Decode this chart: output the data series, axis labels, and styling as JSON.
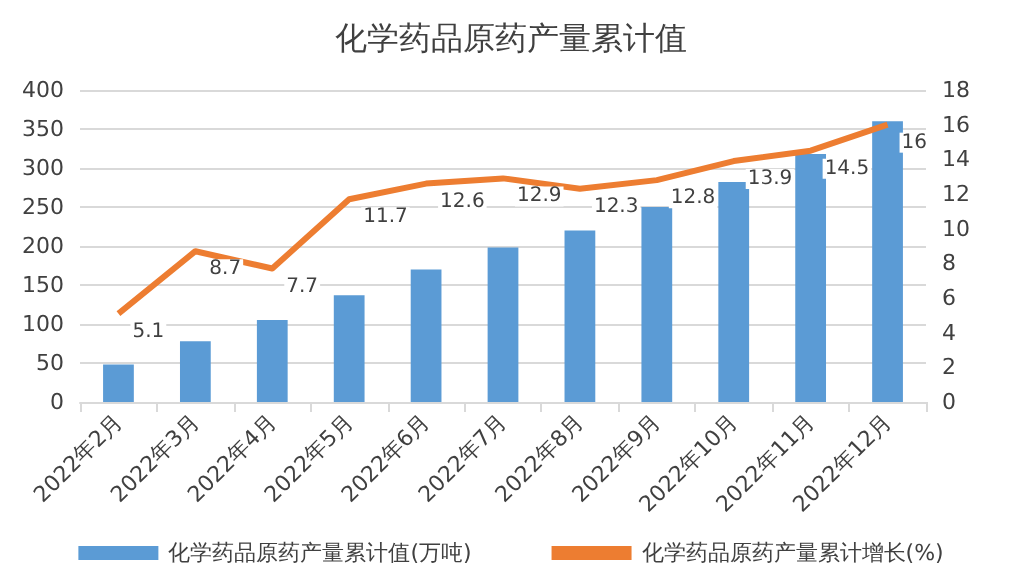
{
  "chart_data": {
    "type": "bar",
    "title": "化学药品原药产量累计值",
    "categories": [
      "2022年2月",
      "2022年3月",
      "2022年4月",
      "2022年5月",
      "2022年6月",
      "2022年7月",
      "2022年8月",
      "2022年9月",
      "2022年10月",
      "2022年11月",
      "2022年12月"
    ],
    "series": [
      {
        "name": "化学药品原药产量累计值(万吨)",
        "color": "#5b9bd5",
        "values": [
          48,
          78,
          105,
          137,
          170,
          198,
          220,
          250,
          282,
          318,
          360
        ]
      },
      {
        "name": "化学药品原药产量累计增长(%)",
        "type": "line",
        "axis": "y2",
        "color": "#ed7d31",
        "values": [
          5.1,
          8.7,
          7.7,
          11.7,
          12.6,
          12.9,
          12.3,
          12.8,
          13.9,
          14.5,
          16
        ],
        "data_labels": true
      }
    ],
    "ylim": [
      0,
      400
    ],
    "yticks": [
      0,
      50,
      100,
      150,
      200,
      250,
      300,
      350,
      400
    ],
    "y2lim": [
      0,
      18
    ],
    "y2ticks": [
      0,
      2,
      4,
      6,
      8,
      10,
      12,
      14,
      16,
      18
    ],
    "grid": "y",
    "legend": "bottom",
    "marker": "none"
  }
}
